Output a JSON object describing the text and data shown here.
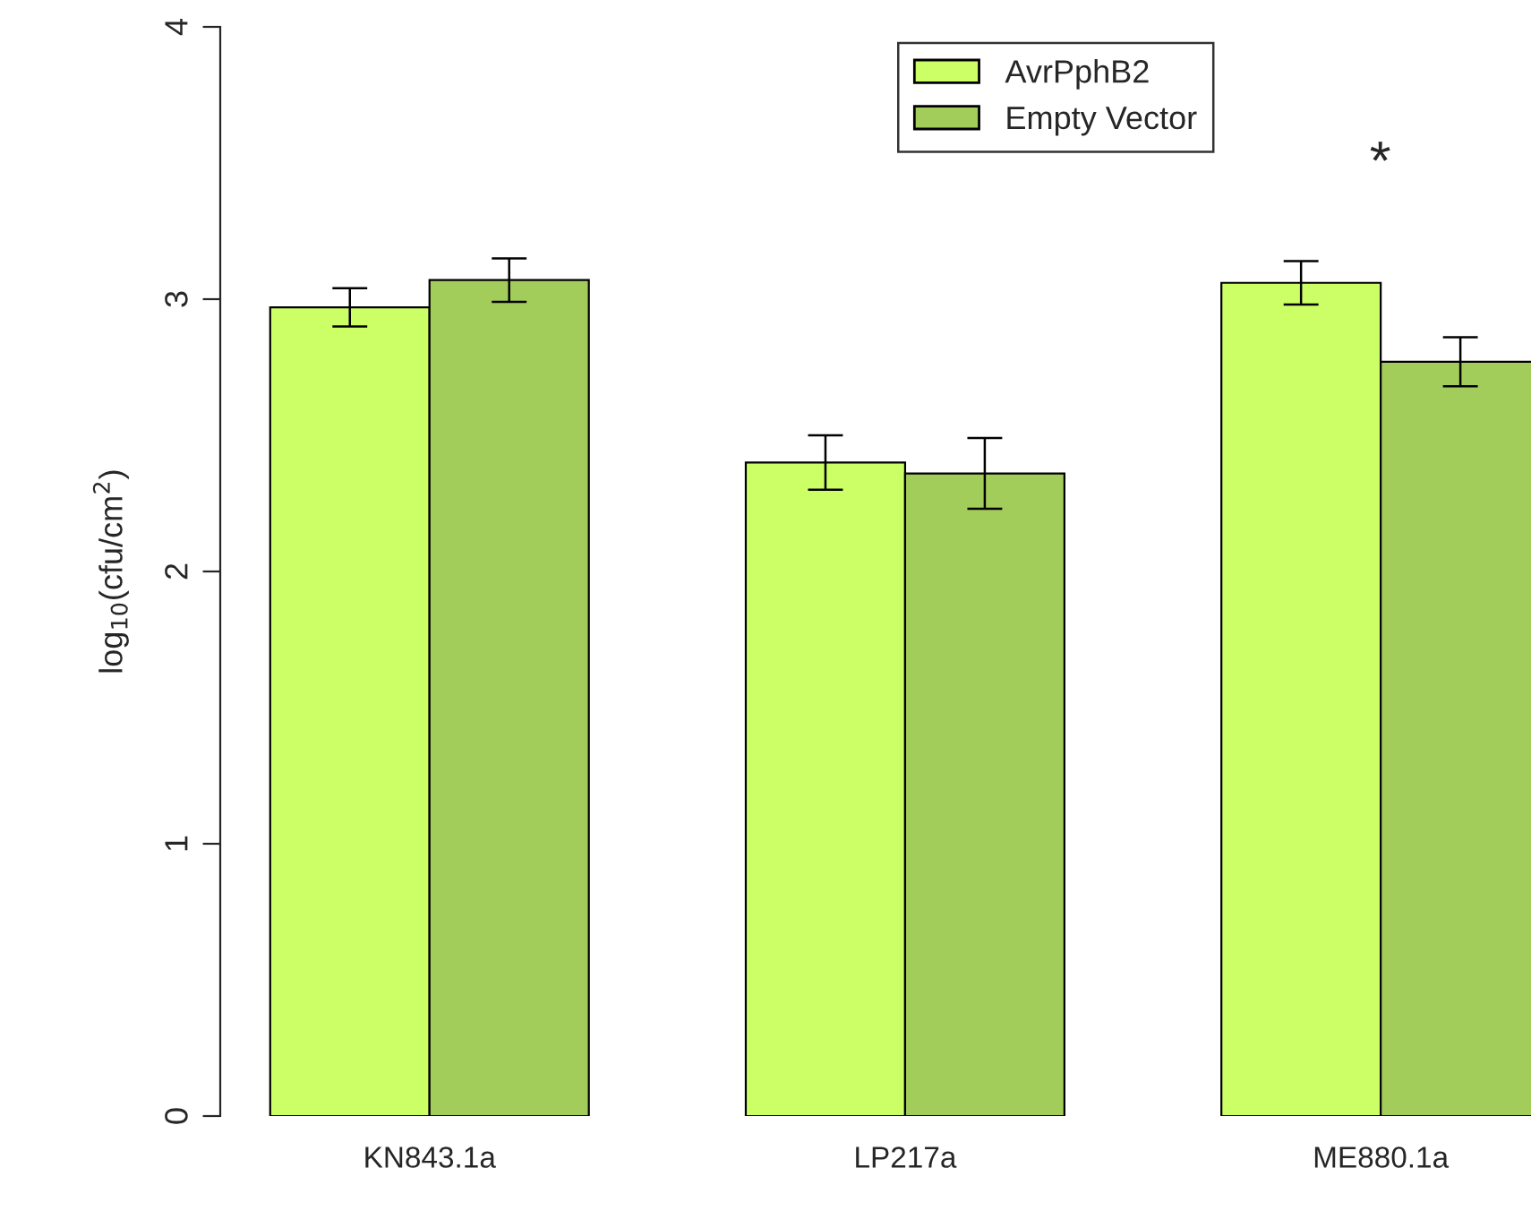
{
  "chart_data": {
    "type": "bar",
    "ylabel": "log$_{10}$(cfu/cm$^{2}$)",
    "categories": [
      "KN843.1a",
      "LP217a",
      "ME880.1a"
    ],
    "series": [
      {
        "name": "AvrPphB2",
        "color": "#ccff66",
        "values": [
          2.97,
          2.4,
          3.06
        ],
        "errors": [
          0.07,
          0.1,
          0.08
        ]
      },
      {
        "name": "Empty Vector",
        "color": "#a2cd5a",
        "values": [
          3.07,
          2.36,
          2.77
        ],
        "errors": [
          0.08,
          0.13,
          0.09
        ]
      }
    ],
    "ylim": [
      0,
      4
    ],
    "yticks": [
      0,
      1,
      2,
      3,
      4
    ],
    "annotations": [
      "*"
    ],
    "grid": false,
    "legend": "top right"
  }
}
